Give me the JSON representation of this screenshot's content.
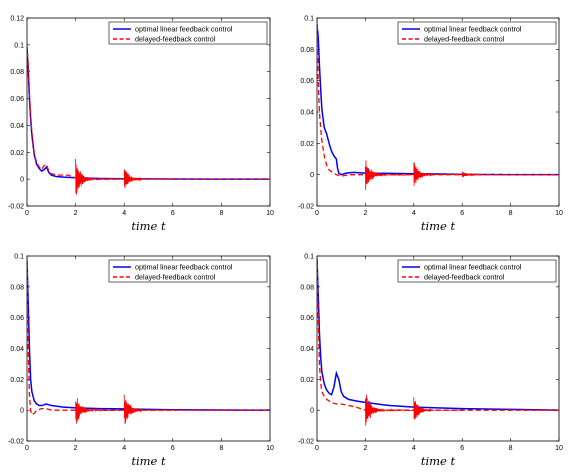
{
  "chart_data": [
    {
      "type": "line",
      "xlabel": "time t",
      "xlim": [
        0,
        10
      ],
      "ylim": [
        -0.02,
        0.12
      ],
      "xticks": [
        "0",
        "2",
        "4",
        "6",
        "8",
        "10"
      ],
      "yticks": [
        "-0.02",
        "0",
        "0.02",
        "0.04",
        "0.06",
        "0.08",
        "0.1",
        "0.12"
      ],
      "legend_position": "top-right",
      "series": [
        {
          "name": "optimal linear feedback control",
          "color": "#0000ff",
          "style": "solid",
          "x": [
            0,
            0.05,
            0.1,
            0.15,
            0.2,
            0.3,
            0.4,
            0.5,
            0.6,
            0.7,
            0.8,
            0.9,
            1.0,
            1.2,
            1.5,
            2.0,
            3.0,
            4.0,
            5.0,
            6.0,
            8.0,
            10.0
          ],
          "y": [
            0.098,
            0.082,
            0.06,
            0.045,
            0.033,
            0.018,
            0.011,
            0.008,
            0.006,
            0.007,
            0.009,
            0.005,
            0.003,
            0.002,
            0.0015,
            0.001,
            0.0005,
            0.0003,
            0.0002,
            0.0001,
            0.0,
            0.0
          ]
        },
        {
          "name": "delayed-feedback control",
          "color": "#ff0000",
          "style": "dashed",
          "x": [
            0,
            0.05,
            0.1,
            0.15,
            0.2,
            0.3,
            0.4,
            0.5,
            0.6,
            0.7,
            0.8,
            0.9,
            1.0,
            1.3,
            1.7,
            2.0,
            3.0,
            4.0,
            5.0,
            6.0,
            8.0,
            10.0
          ],
          "y": [
            0.1,
            0.085,
            0.064,
            0.048,
            0.035,
            0.019,
            0.012,
            0.009,
            0.007,
            0.01,
            0.011,
            0.006,
            0.004,
            0.003,
            0.003,
            0.001,
            0.0,
            0.0,
            0.0,
            0.0,
            0.0,
            0.0
          ],
          "oscillations": [
            {
              "t": 2.0,
              "amp": 0.014
            },
            {
              "t": 4.0,
              "amp": 0.008
            }
          ]
        }
      ]
    },
    {
      "type": "line",
      "xlabel": "time t",
      "xlim": [
        0,
        10
      ],
      "ylim": [
        -0.02,
        0.1
      ],
      "xticks": [
        "0",
        "2",
        "4",
        "6",
        "8",
        "10"
      ],
      "yticks": [
        "-0.02",
        "0",
        "0.02",
        "0.04",
        "0.06",
        "0.08",
        "0.1"
      ],
      "legend_position": "top-right",
      "series": [
        {
          "name": "optimal linear feedback control",
          "color": "#0000ff",
          "style": "solid",
          "x": [
            0,
            0.05,
            0.1,
            0.15,
            0.2,
            0.3,
            0.4,
            0.5,
            0.6,
            0.7,
            0.8,
            0.85,
            0.9,
            1.0,
            1.2,
            1.5,
            2.0,
            3.0,
            4.0,
            5.0,
            6.0,
            8.0,
            10.0
          ],
          "y": [
            0.096,
            0.088,
            0.07,
            0.055,
            0.042,
            0.03,
            0.026,
            0.02,
            0.015,
            0.012,
            0.01,
            0.004,
            0.001,
            0.0,
            0.001,
            0.0015,
            0.001,
            0.0008,
            0.0006,
            0.0004,
            0.0002,
            0.0,
            0.0
          ]
        },
        {
          "name": "delayed-feedback control",
          "color": "#ff0000",
          "style": "dashed",
          "x": [
            0,
            0.05,
            0.1,
            0.15,
            0.2,
            0.3,
            0.4,
            0.5,
            0.6,
            0.8,
            1.0,
            1.3,
            1.7,
            2.0,
            3.0,
            4.0,
            5.0,
            6.0,
            8.0,
            10.0
          ],
          "y": [
            0.1,
            0.06,
            0.04,
            0.03,
            0.022,
            0.012,
            0.006,
            0.003,
            0.002,
            0.0,
            -0.001,
            0.0,
            0.0,
            0.0,
            0.0,
            0.0,
            0.0,
            0.0,
            0.0,
            0.0
          ],
          "oscillations": [
            {
              "t": 2.0,
              "amp": 0.01
            },
            {
              "t": 4.0,
              "amp": 0.008
            },
            {
              "t": 6.0,
              "amp": 0.002
            }
          ]
        }
      ]
    },
    {
      "type": "line",
      "xlabel": "time t",
      "xlim": [
        0,
        10
      ],
      "ylim": [
        -0.02,
        0.1
      ],
      "xticks": [
        "0",
        "2",
        "4",
        "6",
        "8",
        "10"
      ],
      "yticks": [
        "-0.02",
        "0",
        "0.02",
        "0.04",
        "0.06",
        "0.08",
        "0.1"
      ],
      "legend_position": "top-right",
      "series": [
        {
          "name": "optimal linear feedback control",
          "color": "#0000ff",
          "style": "solid",
          "x": [
            0,
            0.05,
            0.1,
            0.15,
            0.2,
            0.3,
            0.4,
            0.5,
            0.6,
            0.8,
            1.0,
            1.5,
            2.0,
            3.0,
            4.0,
            5.0,
            6.0,
            8.0,
            10.0
          ],
          "y": [
            0.097,
            0.07,
            0.04,
            0.02,
            0.012,
            0.006,
            0.004,
            0.003,
            0.003,
            0.004,
            0.003,
            0.002,
            0.0015,
            0.001,
            0.0008,
            0.0005,
            0.0003,
            0.0001,
            0.0
          ]
        },
        {
          "name": "delayed-feedback control",
          "color": "#ff0000",
          "style": "dashed",
          "x": [
            0,
            0.05,
            0.1,
            0.15,
            0.2,
            0.3,
            0.4,
            0.6,
            0.8,
            1.0,
            1.5,
            2.0,
            3.0,
            4.0,
            6.0,
            8.0,
            10.0
          ],
          "y": [
            0.1,
            0.04,
            0.01,
            0.0,
            -0.003,
            -0.002,
            0.0,
            0.001,
            0.001,
            0.0,
            0.0,
            0.0,
            0.0,
            0.0,
            0.0,
            0.0,
            0.0
          ],
          "oscillations": [
            {
              "t": 2.0,
              "amp": 0.01
            },
            {
              "t": 4.0,
              "amp": 0.01
            }
          ]
        }
      ]
    },
    {
      "type": "line",
      "xlabel": "time t",
      "xlim": [
        0,
        10
      ],
      "ylim": [
        -0.02,
        0.1
      ],
      "xticks": [
        "0",
        "2",
        "4",
        "6",
        "8",
        "10"
      ],
      "yticks": [
        "-0.02",
        "0",
        "0.02",
        "0.04",
        "0.06",
        "0.08",
        "0.1"
      ],
      "legend_position": "top-right",
      "series": [
        {
          "name": "optimal linear feedback control",
          "color": "#0000ff",
          "style": "solid",
          "x": [
            0,
            0.05,
            0.1,
            0.15,
            0.2,
            0.3,
            0.4,
            0.5,
            0.6,
            0.7,
            0.8,
            0.9,
            1.0,
            1.1,
            1.3,
            1.6,
            2.0,
            2.5,
            3.0,
            4.0,
            5.0,
            6.0,
            8.0,
            10.0
          ],
          "y": [
            0.098,
            0.075,
            0.05,
            0.035,
            0.025,
            0.017,
            0.013,
            0.011,
            0.01,
            0.015,
            0.024,
            0.02,
            0.012,
            0.009,
            0.007,
            0.006,
            0.005,
            0.004,
            0.003,
            0.002,
            0.0015,
            0.001,
            0.0005,
            0.0
          ]
        },
        {
          "name": "delayed-feedback control",
          "color": "#ff0000",
          "style": "dashed",
          "x": [
            0,
            0.05,
            0.1,
            0.15,
            0.2,
            0.3,
            0.4,
            0.6,
            0.8,
            1.0,
            1.3,
            1.6,
            2.0,
            3.0,
            4.0,
            6.0,
            8.0,
            10.0
          ],
          "y": [
            0.1,
            0.06,
            0.03,
            0.018,
            0.012,
            0.009,
            0.007,
            0.005,
            0.004,
            0.004,
            0.003,
            0.002,
            0.0,
            0.0,
            0.0,
            0.0,
            0.0,
            0.0
          ],
          "oscillations": [
            {
              "t": 2.0,
              "amp": 0.012
            },
            {
              "t": 4.0,
              "amp": 0.008
            }
          ]
        }
      ]
    }
  ]
}
